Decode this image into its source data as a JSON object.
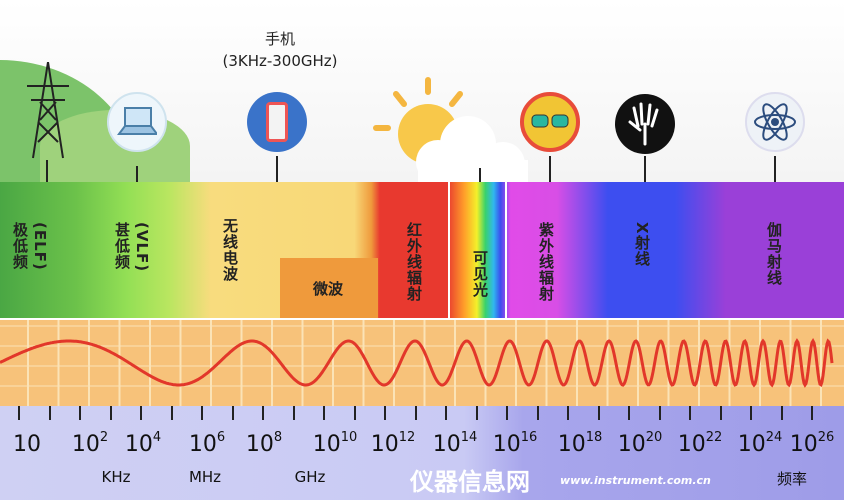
{
  "phone_label": {
    "title": "手机",
    "range": "(3KHz-300GHz)"
  },
  "icons": [
    "power-tower-icon",
    "laptop-icon",
    "mobile-phone-icon",
    "sun-icon",
    "sunglasses-icon",
    "xray-hand-icon",
    "atom-icon"
  ],
  "bands": [
    {
      "label": "极低频",
      "sub": "(ELF)",
      "color": "#5cb94a"
    },
    {
      "label": "甚低频",
      "sub": "(VLF)",
      "color": "#8fdc52"
    },
    {
      "label": "无线电波",
      "sub": "",
      "color": "#f8d878"
    },
    {
      "label": "微波",
      "sub": "",
      "color": "#ef9a3c"
    },
    {
      "label": "红外线辐射",
      "sub": "",
      "color": "#e8392f"
    },
    {
      "label": "可见光",
      "sub": "",
      "color": "#ffffff"
    },
    {
      "label": "紫外线辐射",
      "sub": "",
      "color": "#e14be8"
    },
    {
      "label": "X射线",
      "sub": "",
      "color": "#3d4ef0"
    },
    {
      "label": "伽马射线",
      "sub": "",
      "color": "#9a40d8"
    }
  ],
  "axis": {
    "ticks": [
      {
        "base": "10",
        "exp": ""
      },
      {
        "base": "10",
        "exp": "2"
      },
      {
        "base": "10",
        "exp": "4"
      },
      {
        "base": "10",
        "exp": "6"
      },
      {
        "base": "10",
        "exp": "8"
      },
      {
        "base": "10",
        "exp": "10"
      },
      {
        "base": "10",
        "exp": "12"
      },
      {
        "base": "10",
        "exp": "14"
      },
      {
        "base": "10",
        "exp": "16"
      },
      {
        "base": "10",
        "exp": "18"
      },
      {
        "base": "10",
        "exp": "20"
      },
      {
        "base": "10",
        "exp": "22"
      },
      {
        "base": "10",
        "exp": "24"
      },
      {
        "base": "10",
        "exp": "26"
      }
    ],
    "units": [
      "KHz",
      "MHz",
      "GHz"
    ],
    "title": "频率"
  },
  "watermark": {
    "name": "仪器信息网",
    "url": "www.instrument.com.cn"
  },
  "colors": {
    "wave": "#e2372a",
    "wave_bg": "#f7c27a"
  }
}
